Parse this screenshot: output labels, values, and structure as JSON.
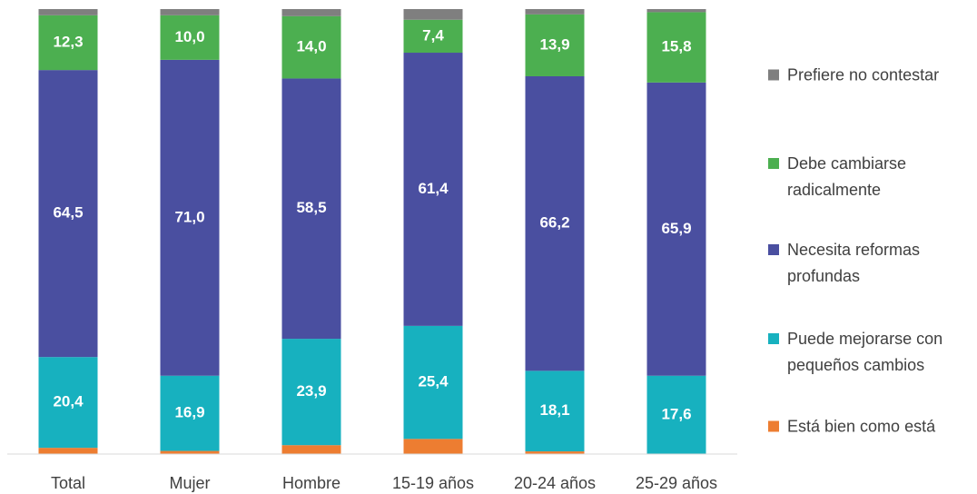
{
  "chart_data": {
    "type": "stacked_bar",
    "categories": [
      "Total",
      "Mujer",
      "Hombre",
      "15-19 años",
      "20-24 años",
      "25-29 años"
    ],
    "ylim": [
      0,
      100
    ],
    "series": [
      {
        "name": "Está bien como está",
        "color": "#ED7D31",
        "values": [
          1.4,
          0.7,
          2.0,
          3.4,
          0.6,
          0
        ],
        "value_labels": [
          null,
          null,
          null,
          null,
          null,
          null
        ]
      },
      {
        "name": "Puede mejorarse con pequeños cambios",
        "color": "#17B1BF",
        "values": [
          20.4,
          16.9,
          23.9,
          25.4,
          18.1,
          17.6
        ],
        "value_labels": [
          "20,4",
          "16,9",
          "23,9",
          "25,4",
          "18,1",
          "17,6"
        ]
      },
      {
        "name": "Necesita reformas profundas",
        "color": "#4A4FA0",
        "values": [
          64.5,
          71.0,
          58.5,
          61.4,
          66.2,
          65.9
        ],
        "value_labels": [
          "64,5",
          "71,0",
          "58,5",
          "61,4",
          "66,2",
          "65,9"
        ]
      },
      {
        "name": "Debe cambiarse radicalmente",
        "color": "#4CAF50",
        "values": [
          12.3,
          10.0,
          14.0,
          7.4,
          13.9,
          15.8
        ],
        "value_labels": [
          "12,3",
          "10,0",
          "14,0",
          "7,4",
          "13,9",
          "15,8"
        ]
      },
      {
        "name": "Prefiere no contestar",
        "color": "#7F7F7F",
        "values": [
          1.4,
          1.4,
          1.6,
          2.4,
          1.2,
          0.7
        ],
        "value_labels": [
          null,
          null,
          null,
          null,
          null,
          null
        ]
      }
    ],
    "legend": "right"
  }
}
